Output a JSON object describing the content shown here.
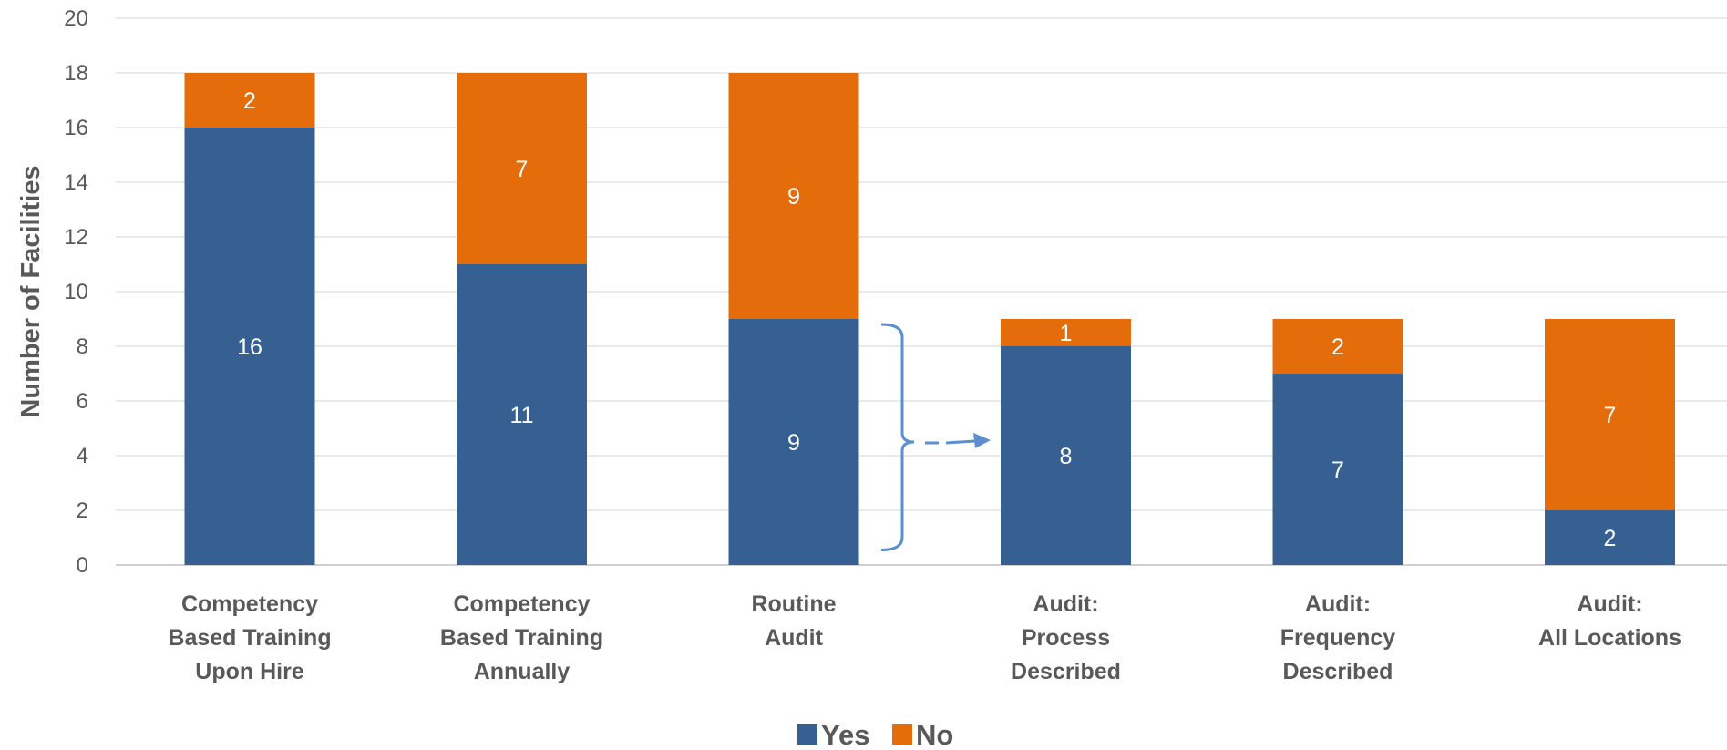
{
  "chart_data": {
    "type": "bar",
    "stacked": true,
    "categories": [
      [
        "Competency",
        "Based Training",
        "Upon Hire"
      ],
      [
        "Competency",
        "Based Training",
        "Annually"
      ],
      [
        "Routine",
        "Audit"
      ],
      [
        "Audit:",
        "Process",
        "Described"
      ],
      [
        "Audit:",
        "Frequency",
        "Described"
      ],
      [
        "Audit:",
        "All Locations"
      ]
    ],
    "series": [
      {
        "name": "Yes",
        "color": "#366092",
        "values": [
          16,
          11,
          9,
          8,
          7,
          2
        ]
      },
      {
        "name": "No",
        "color": "#E46C0A",
        "values": [
          2,
          7,
          9,
          1,
          2,
          7
        ]
      }
    ],
    "ylabel": "Number of Facilities",
    "xlabel": "",
    "title": "",
    "ylim": [
      0,
      20
    ],
    "yticks": [
      0,
      2,
      4,
      6,
      8,
      10,
      12,
      14,
      16,
      18,
      20
    ],
    "grid": true,
    "legend_position": "bottom-center",
    "annotation": {
      "type": "bracket-arrow",
      "from_category": 2,
      "to_category": 3,
      "color": "#5b8fd0"
    }
  }
}
